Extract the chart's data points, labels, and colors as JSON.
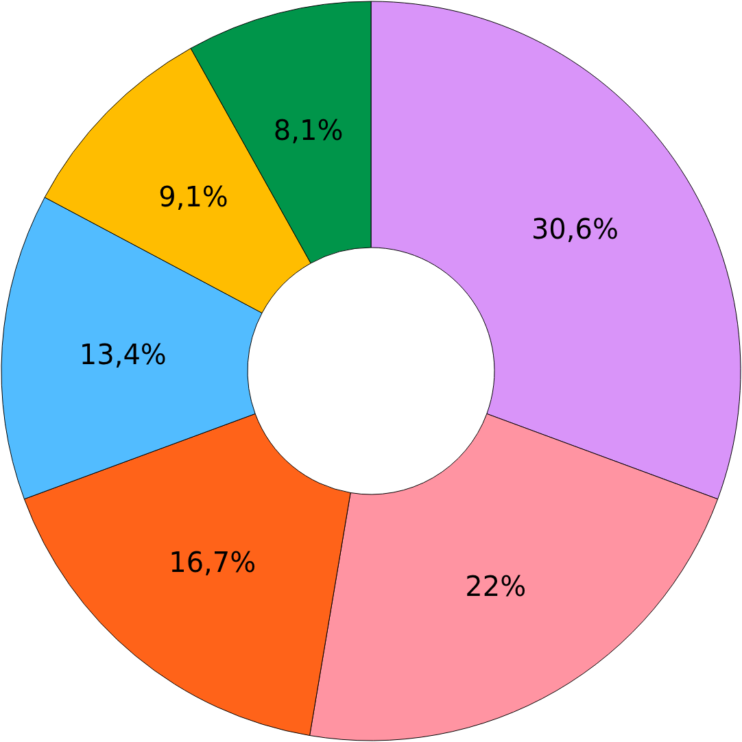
{
  "chart_data": {
    "type": "donut",
    "categories": [
      null,
      null,
      null,
      null,
      null,
      null
    ],
    "values": [
      30.6,
      22,
      16.7,
      13.4,
      9.1,
      8.1
    ],
    "colors": [
      "#d994f9",
      "#ff94a2",
      "#ff6319",
      "#52bcff",
      "#ffbd00",
      "#00954a"
    ],
    "value_labels": [
      "30,6%",
      "22%",
      "16,7%",
      "13,4%",
      "9,1%",
      "8,1%"
    ]
  }
}
